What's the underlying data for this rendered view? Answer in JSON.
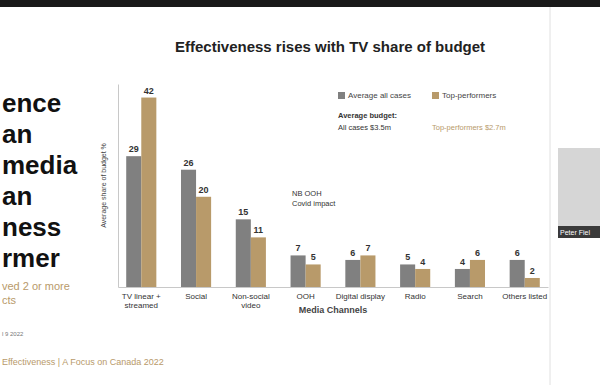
{
  "chart_data": {
    "type": "bar",
    "title": "Effectiveness rises with TV share of budget",
    "x_label": "Media Channels",
    "y_label": "Average share of budget %",
    "categories": [
      "TV linear + streamed",
      "Social",
      "Non-social video",
      "OOH",
      "Digital display",
      "Radio",
      "Search",
      "Others listed"
    ],
    "series": [
      {
        "name": "Average all cases",
        "color": "#808080",
        "values": [
          29,
          26,
          15,
          7,
          6,
          5,
          4,
          6
        ]
      },
      {
        "name": "Top-performers",
        "color": "#b89a6a",
        "values": [
          42,
          20,
          11,
          5,
          7,
          4,
          6,
          2
        ]
      }
    ],
    "ylim": [
      0,
      45
    ],
    "data_labels": true,
    "tick_labels": "x",
    "legend": "upper right",
    "annotations": [
      "Average budget:",
      "All cases $3.5m",
      "Top-performers $2.7m",
      "NB OOH",
      "Covid impact"
    ]
  },
  "slide": {
    "side_text": [
      "ence",
      "an",
      "media",
      "an",
      "ness",
      "rmer"
    ],
    "side_note": [
      "ved 2 or more",
      "cts"
    ],
    "date": "l 9 2022",
    "footer": "Effectiveness | A Focus on Canada 2022",
    "participant": "Peter Fiel"
  }
}
